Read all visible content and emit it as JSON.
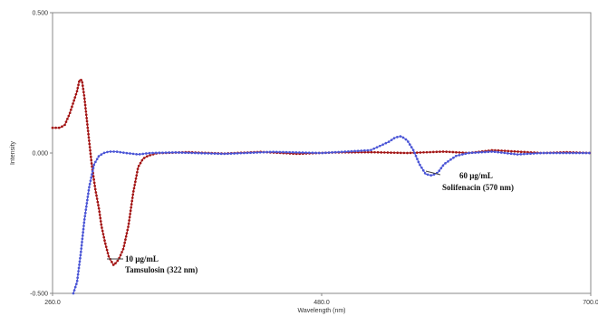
{
  "chart_data": {
    "type": "line",
    "title": "",
    "xlabel": "Wavelength (nm)",
    "ylabel": "Intensity",
    "xlim": [
      260.0,
      700.0
    ],
    "ylim": [
      -0.5,
      0.5
    ],
    "x_ticks": [
      "260.0",
      "480.0",
      "700.0"
    ],
    "y_ticks": [
      "0.500",
      "0.000",
      "-0.500"
    ],
    "grid": false,
    "colors": {
      "series_1": "#a31515",
      "series_2": "#4a55d6",
      "frame": "#888888"
    },
    "series": [
      {
        "x": [
          260,
          266,
          270,
          274,
          277,
          280,
          282,
          284,
          286,
          289,
          292,
          295,
          298,
          300,
          303,
          306,
          310,
          314,
          318,
          320,
          322,
          324,
          326,
          330,
          334,
          338,
          342,
          346,
          350,
          370,
          400,
          430,
          460,
          490,
          520,
          550,
          580,
          600,
          620,
          640,
          660,
          680,
          700
        ],
        "y": [
          0.09,
          0.09,
          0.1,
          0.14,
          0.18,
          0.22,
          0.26,
          0.26,
          0.2,
          0.08,
          -0.04,
          -0.13,
          -0.2,
          -0.26,
          -0.32,
          -0.37,
          -0.4,
          -0.38,
          -0.34,
          -0.3,
          -0.26,
          -0.2,
          -0.14,
          -0.05,
          -0.02,
          -0.01,
          -0.005,
          0.0,
          0.0,
          0.003,
          -0.002,
          0.004,
          -0.003,
          0.002,
          0.003,
          0.0,
          0.005,
          0.0,
          0.01,
          0.005,
          0.0,
          0.003,
          0.0
        ]
      },
      {
        "x": [
          277,
          280,
          283,
          286,
          290,
          294,
          298,
          302,
          306,
          312,
          320,
          330,
          340,
          360,
          400,
          440,
          480,
          520,
          535,
          540,
          545,
          550,
          555,
          560,
          565,
          570,
          575,
          580,
          590,
          600,
          620,
          640,
          660,
          680,
          700
        ],
        "y": [
          -0.5,
          -0.46,
          -0.36,
          -0.24,
          -0.12,
          -0.04,
          -0.01,
          0.0,
          0.005,
          0.005,
          0.0,
          -0.005,
          0.0,
          0.002,
          -0.003,
          0.004,
          0.0,
          0.01,
          0.04,
          0.055,
          0.06,
          0.045,
          0.01,
          -0.04,
          -0.075,
          -0.08,
          -0.07,
          -0.04,
          -0.01,
          0.0,
          0.005,
          -0.005,
          0.0,
          0.0,
          0.0
        ]
      }
    ],
    "annotations": [
      {
        "lines": [
          "10 µg/mL",
          "Tamsulosin (322 nm)"
        ]
      },
      {
        "lines": [
          "60 µg/mL",
          "Solifenacin (570 nm)"
        ]
      }
    ]
  }
}
